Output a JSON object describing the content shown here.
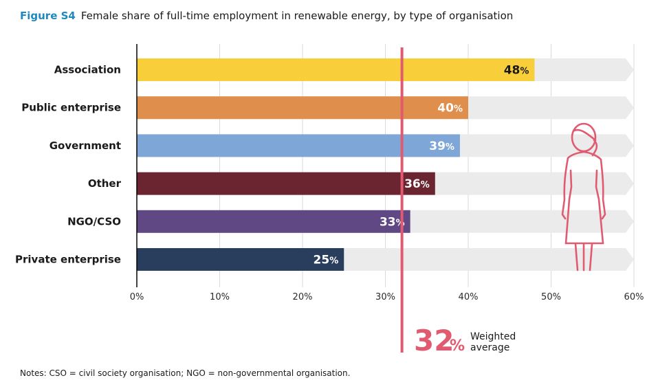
{
  "figure": {
    "label": "Figure S4",
    "title": "Female share of full-time employment in renewable energy, by type of organisation"
  },
  "notes": "Notes: CSO = civil society organisation; NGO = non-governmental organisation.",
  "chart_data": {
    "type": "bar",
    "orientation": "horizontal",
    "title": "Female share of full-time employment in renewable energy, by type of organisation",
    "xlabel": "",
    "ylabel": "",
    "xlim": [
      0,
      60
    ],
    "x_ticks": [
      "0%",
      "10%",
      "20%",
      "30%",
      "40%",
      "50%",
      "60%"
    ],
    "x_tick_values": [
      0,
      10,
      20,
      30,
      40,
      50,
      60
    ],
    "grid": true,
    "categories": [
      "Association",
      "Public enterprise",
      "Government",
      "Other",
      "NGO/CSO",
      "Private enterprise"
    ],
    "values": [
      48,
      40,
      39,
      36,
      33,
      25
    ],
    "value_labels": [
      "48",
      "40",
      "39",
      "36",
      "33",
      "25"
    ],
    "value_suffix": "%",
    "colors": [
      "#f8ce3a",
      "#df8e4b",
      "#7ea7d8",
      "#6b2530",
      "#5f4884",
      "#283e5c"
    ],
    "label_colors": [
      "#1a1a1a",
      "#ffffff",
      "#ffffff",
      "#ffffff",
      "#ffffff",
      "#ffffff"
    ],
    "background_track_max": 60,
    "track_color": "#ebebeb",
    "reference_line": {
      "value": 32,
      "value_label": "32",
      "suffix": "%",
      "label_line1": "Weighted",
      "label_line2": "average",
      "color": "#e05a70"
    },
    "icon": "woman-figure-icon"
  }
}
